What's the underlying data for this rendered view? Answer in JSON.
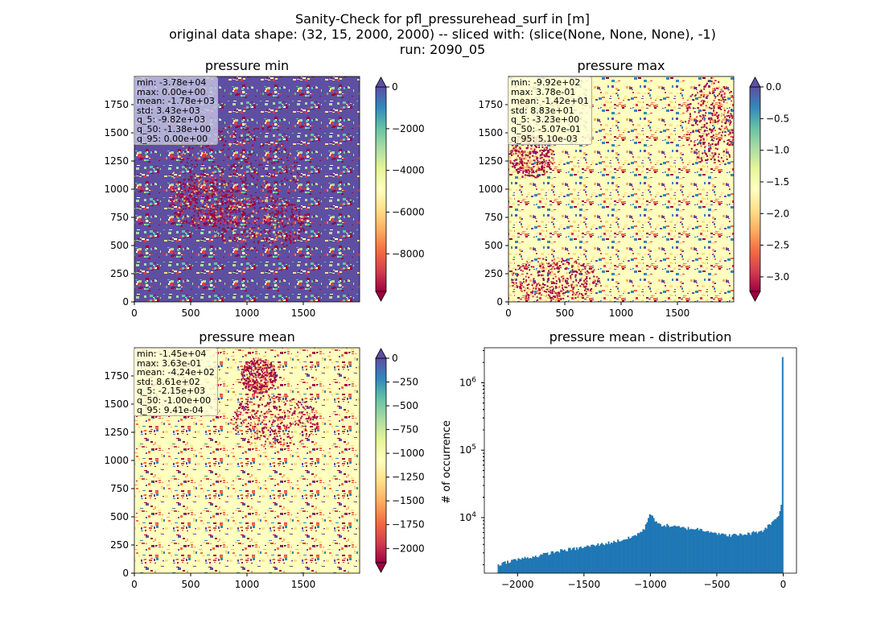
{
  "title_lines": [
    "Sanity-Check for pfl_pressurehead_surf in [m]",
    "original data shape: (32, 15, 2000, 2000) -- sliced with: (slice(None, None, None), -1)",
    "run: 2090_05"
  ],
  "colors": {
    "cmap": [
      "#9e0142",
      "#d53e4f",
      "#f46d43",
      "#fdae61",
      "#fee08b",
      "#ffffbf",
      "#e6f598",
      "#abdda4",
      "#66c2a5",
      "#3288bd",
      "#5e4fa2"
    ],
    "hist_bar": "#1f77b4"
  },
  "chart_data": [
    {
      "type": "heatmap",
      "title": "pressure min",
      "x_ticks": [
        "0",
        "500",
        "1000",
        "1500"
      ],
      "y_ticks": [
        "0",
        "250",
        "500",
        "750",
        "1000",
        "1250",
        "1500",
        "1750"
      ],
      "extent": [
        0,
        2000
      ],
      "colorbar": {
        "vmin": -9800,
        "vmax": 0,
        "ticks": [
          "0",
          "−2000",
          "−4000",
          "−6000",
          "−8000"
        ],
        "extend": "both"
      },
      "dominant": "high",
      "stats": [
        "min: -3.78e+04",
        "max: 0.00e+00",
        "mean: -1.78e+03",
        "std: 3.43e+03",
        "q_5: -9.82e+03",
        "q_50: -1.38e+00",
        "q_95: 0.00e+00"
      ]
    },
    {
      "type": "heatmap",
      "title": "pressure max",
      "x_ticks": [
        "0",
        "500",
        "1000",
        "1500"
      ],
      "y_ticks": [
        "0",
        "250",
        "500",
        "750",
        "1000",
        "1250",
        "1500",
        "1750"
      ],
      "extent": [
        0,
        2000
      ],
      "colorbar": {
        "vmin": -3.23,
        "vmax": 0.0,
        "ticks": [
          "0.0",
          "−0.5",
          "−1.0",
          "−1.5",
          "−2.0",
          "−2.5",
          "−3.0"
        ],
        "extend": "both"
      },
      "dominant": "light",
      "stats": [
        "min: -9.92e+02",
        "max: 3.78e-01",
        "mean: -1.42e+01",
        "std: 8.83e+01",
        "q_5: -3.23e+00",
        "q_50: -5.07e-01",
        "q_95: 5.10e-03"
      ]
    },
    {
      "type": "heatmap",
      "title": "pressure mean",
      "x_ticks": [
        "0",
        "500",
        "1000",
        "1500"
      ],
      "y_ticks": [
        "0",
        "250",
        "500",
        "750",
        "1000",
        "1250",
        "1500",
        "1750"
      ],
      "extent": [
        0,
        2000
      ],
      "colorbar": {
        "vmin": -2150,
        "vmax": 0,
        "ticks": [
          "0",
          "−250",
          "−500",
          "−750",
          "−1000",
          "−1250",
          "−1500",
          "−1750",
          "−2000"
        ],
        "extend": "both"
      },
      "dominant": "light",
      "stats": [
        "min: -1.45e+04",
        "max: 3.63e-01",
        "mean: -4.24e+02",
        "std: 8.61e+02",
        "q_5: -2.15e+03",
        "q_50: -1.00e+00",
        "q_95: 9.41e-04"
      ]
    },
    {
      "type": "bar",
      "title": "pressure mean - distribution",
      "ylabel": "# of occurrence",
      "yscale": "log",
      "xlim": [
        -2250,
        100
      ],
      "ylim": [
        1500,
        3300000
      ],
      "x_ticks": [
        "−2000",
        "−1500",
        "−1000",
        "−500",
        "0"
      ],
      "y_ticks": [
        "10^4",
        "10^5",
        "10^6"
      ],
      "x": [
        -2150,
        -2050,
        -1950,
        -1850,
        -1750,
        -1650,
        -1550,
        -1450,
        -1350,
        -1250,
        -1150,
        -1050,
        -1000,
        -950,
        -850,
        -750,
        -650,
        -550,
        -450,
        -350,
        -250,
        -150,
        -100,
        -50,
        -25,
        -10,
        -5
      ],
      "values": [
        2000,
        2300,
        2500,
        2700,
        3000,
        3300,
        3500,
        3800,
        4100,
        4500,
        5000,
        6500,
        12000,
        8000,
        7500,
        7000,
        6800,
        6300,
        5500,
        5500,
        5800,
        6500,
        8000,
        10000,
        12000,
        19000,
        2400000
      ]
    }
  ]
}
